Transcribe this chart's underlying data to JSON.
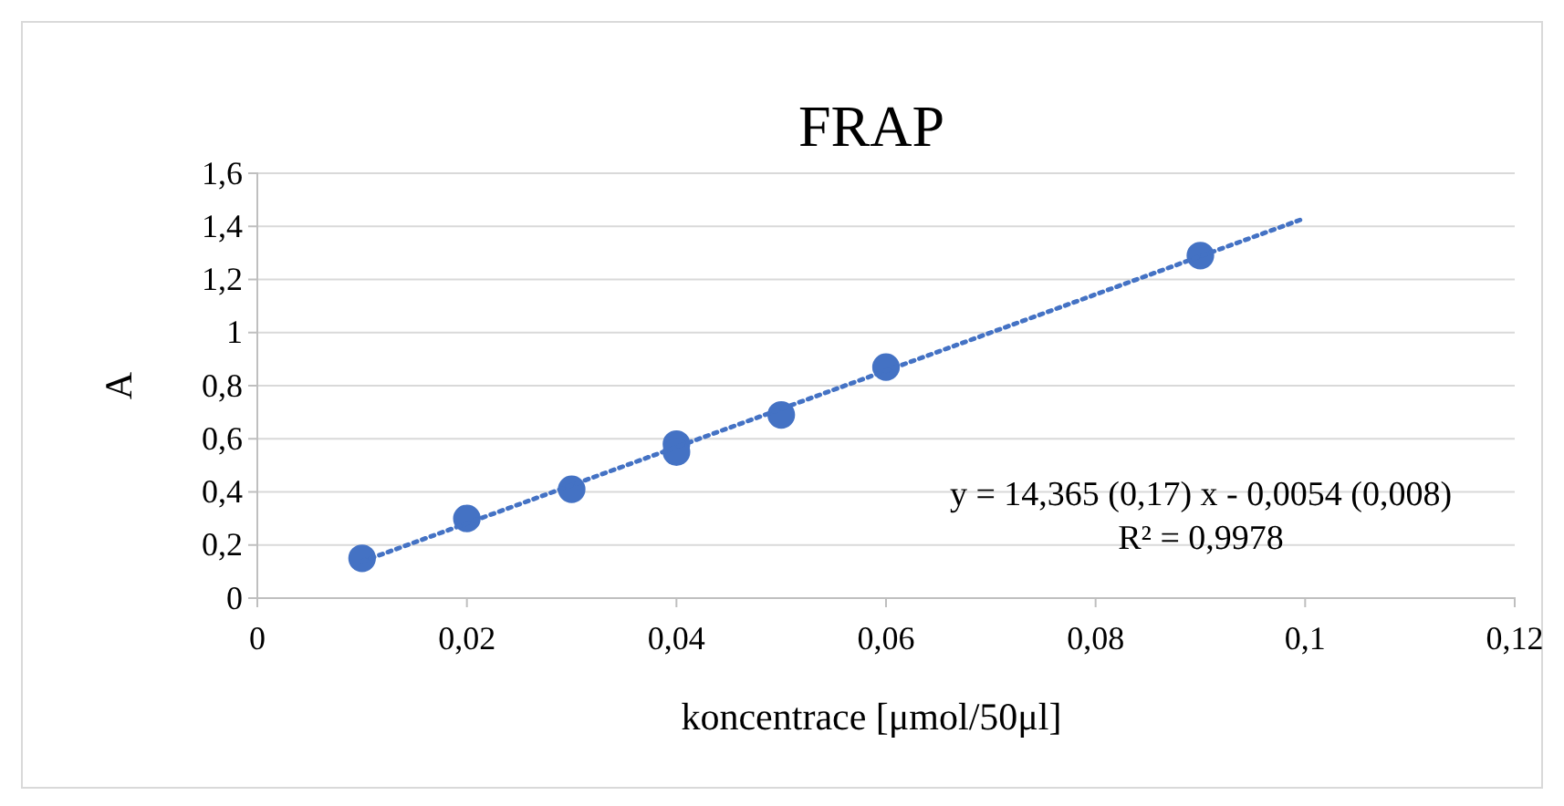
{
  "chart_data": {
    "type": "scatter",
    "title": "FRAP",
    "xlabel": "koncentrace [μmol/50μl]",
    "ylabel": "A",
    "series": [
      {
        "color": "#4472c4",
        "marker": "circle",
        "x": [
          0.01,
          0.02,
          0.03,
          0.04,
          0.04,
          0.05,
          0.06,
          0.09
        ],
        "values": [
          0.15,
          0.3,
          0.41,
          0.58,
          0.55,
          0.69,
          0.87,
          1.29
        ]
      },
      {
        "type": "line",
        "color": "#4472c4",
        "marker": "none",
        "line_style": "dotted",
        "x": [
          0.01,
          0.1
        ],
        "values": [
          0.138,
          1.431
        ]
      }
    ],
    "xlim": [
      0,
      0.12
    ],
    "xticks": [
      0,
      {
        "value": 0.02,
        "label": "0,02"
      },
      {
        "value": 0.04,
        "label": "0,04"
      },
      {
        "value": 0.06,
        "label": "0,06"
      },
      {
        "value": 0.08,
        "label": "0,08"
      },
      {
        "value": 0.1,
        "label": "0,1"
      },
      {
        "value": 0.12,
        "label": "0,12"
      }
    ],
    "ylim": [
      0,
      1.6
    ],
    "yticks": [
      0,
      {
        "value": 0.2,
        "label": "0,2"
      },
      {
        "value": 0.4,
        "label": "0,4"
      },
      {
        "value": 0.6,
        "label": "0,6"
      },
      {
        "value": 0.8,
        "label": "0,8"
      },
      1,
      {
        "value": 1.2,
        "label": "1,2"
      },
      {
        "value": 1.4,
        "label": "1,4"
      },
      {
        "value": 1.6,
        "label": "1,6"
      }
    ],
    "grid": "y",
    "annotations": [
      "y = 14,365 (0,17) x - 0,0054 (0,008)",
      "R² = 0,9978"
    ]
  }
}
